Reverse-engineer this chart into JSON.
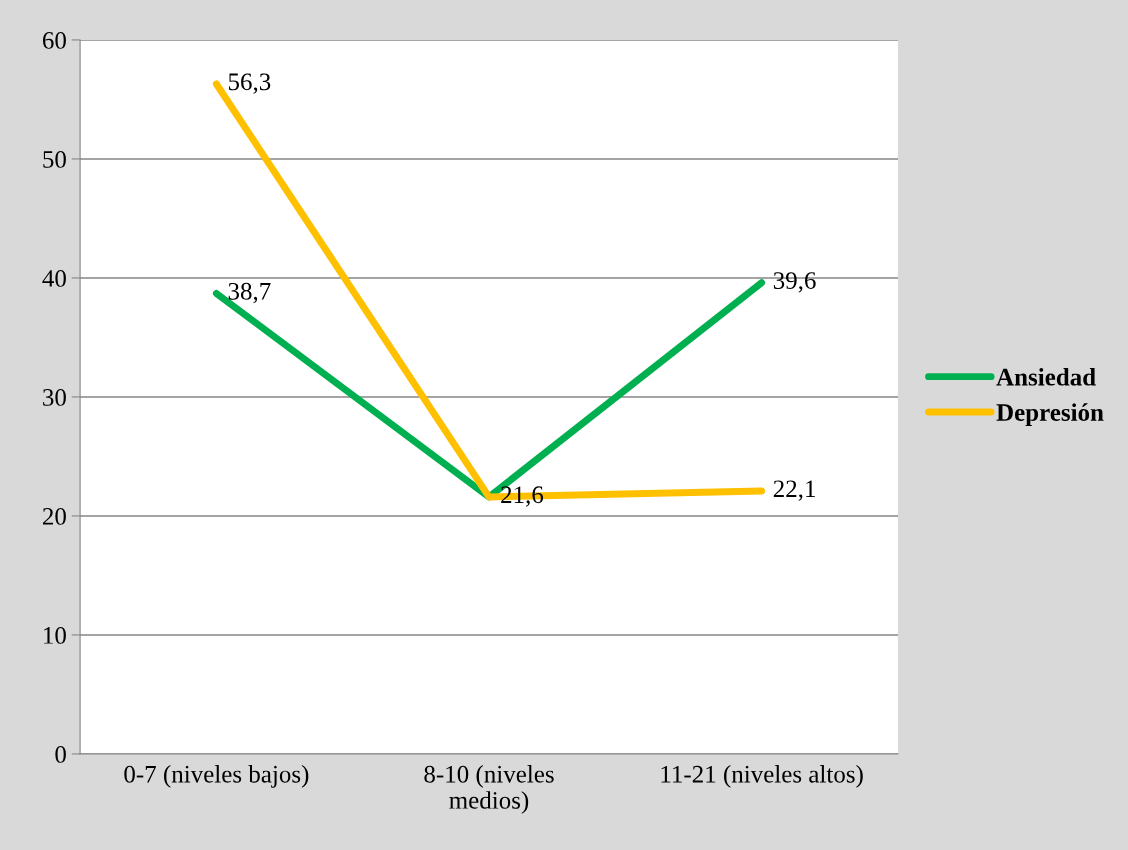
{
  "chart_data": {
    "type": "line",
    "categories": [
      "0-7 (niveles bajos)",
      "8-10 (niveles\nmedios)",
      "11-21 (niveles altos)"
    ],
    "series": [
      {
        "name": "Ansiedad",
        "color": "#00b050",
        "values": [
          38.7,
          21.6,
          39.6
        ],
        "value_labels": [
          "38,7",
          "21,6",
          "39,6"
        ]
      },
      {
        "name": "Depresión",
        "color": "#ffc000",
        "values": [
          56.3,
          21.6,
          22.1
        ],
        "value_labels": [
          "56,3",
          null,
          "22,1"
        ]
      }
    ],
    "ylim": [
      0,
      60
    ],
    "yticks": [
      0,
      10,
      20,
      30,
      40,
      50,
      60
    ],
    "grid": "y",
    "legend": "right",
    "marker": "none",
    "line_style": "solid"
  }
}
